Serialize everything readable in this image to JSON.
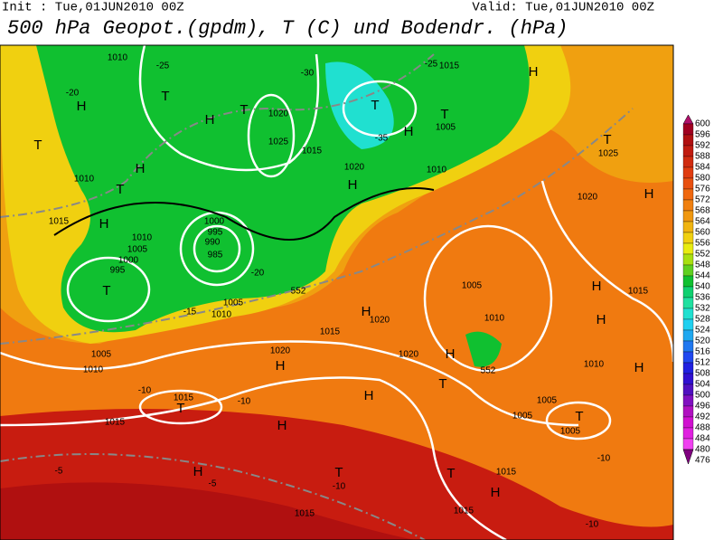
{
  "header": {
    "init": "Init : Tue,01JUN2010 00Z",
    "valid": "Valid: Tue,01JUN2010 00Z",
    "title": "500 hPa Geopot.(gpdm), T (C) und Bodendr. (hPa)"
  },
  "colorbar": {
    "levels": [
      600,
      596,
      592,
      588,
      584,
      580,
      576,
      572,
      568,
      564,
      560,
      556,
      552,
      548,
      544,
      540,
      536,
      532,
      528,
      524,
      520,
      516,
      512,
      508,
      504,
      500,
      496,
      492,
      488,
      484,
      480,
      476
    ],
    "colors": [
      "#b0106a",
      "#a00020",
      "#b01010",
      "#c01c10",
      "#d02c10",
      "#e03c10",
      "#e85010",
      "#f06810",
      "#f08010",
      "#f09810",
      "#f0b410",
      "#f0d010",
      "#e8ec10",
      "#a8e010",
      "#60d020",
      "#10c030",
      "#10d070",
      "#20e0a0",
      "#20e0d0",
      "#20d0f0",
      "#20a8f0",
      "#2078f0",
      "#2048f0",
      "#2020e0",
      "#3010d0",
      "#5010c0",
      "#8010c0",
      "#b010c0",
      "#d010d0",
      "#e020e0",
      "#f040f0",
      "#800080"
    ]
  },
  "map": {
    "labels": [
      "1010",
      "-25",
      "-30",
      "1015",
      "-25",
      "H",
      "T",
      "H",
      "T",
      "1020",
      "T",
      "T",
      "-20",
      "T",
      "H",
      "1025",
      "1015",
      "-35",
      "1005",
      "H",
      "H",
      "T",
      "1010",
      "1020",
      "H",
      "1010",
      "T",
      "1025",
      "1020",
      "H",
      "1015",
      "H",
      "1000",
      "995",
      "990",
      "985",
      "1010",
      "1005",
      "1000",
      "995",
      "T",
      "-20",
      "1005",
      "-15",
      "1010",
      "H",
      "1020",
      "1015",
      "1005",
      "1010",
      "H",
      "H",
      "1015",
      "1005",
      "1010",
      "1020",
      "H",
      "1020",
      "H",
      "-10",
      "1015",
      "T",
      "H",
      "H",
      "1015",
      "-10",
      "T",
      "1005",
      "1005",
      "T",
      "1005",
      "H",
      "1010",
      "H",
      "-5",
      "T",
      "-10",
      "T",
      "1015",
      "H",
      "1015",
      "1015",
      "-10",
      "-10",
      "-5",
      "552",
      "552"
    ]
  }
}
